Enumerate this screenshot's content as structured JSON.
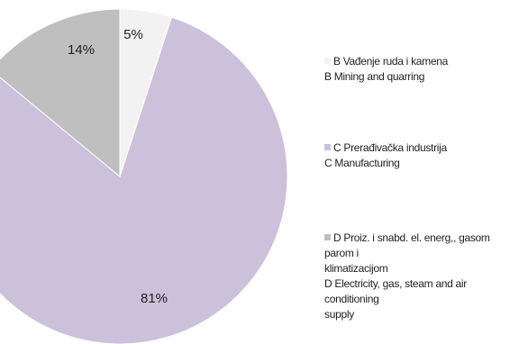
{
  "chart_data": {
    "type": "pie",
    "slices": [
      {
        "label_lines": [
          "B Vađenje ruda i kamena",
          "B Mining and quarring"
        ],
        "value": 5,
        "value_label": "5%",
        "color": "#f2f2f2"
      },
      {
        "label_lines": [
          "C Prerađivačka industrija",
          "C Manufacturing"
        ],
        "value": 81,
        "value_label": "81%",
        "color": "#ccc1da"
      },
      {
        "label_lines": [
          "D Proiz. i snabd. el. energ,, gasom parom i",
          "klimatizacijom",
          "D Electricity, gas, steam and air conditioning",
          "supply"
        ],
        "value": 14,
        "value_label": "14%",
        "color": "#bfbfbf"
      }
    ],
    "start_angle_deg": 0,
    "direction": "clockwise",
    "legend_placement": "right"
  }
}
